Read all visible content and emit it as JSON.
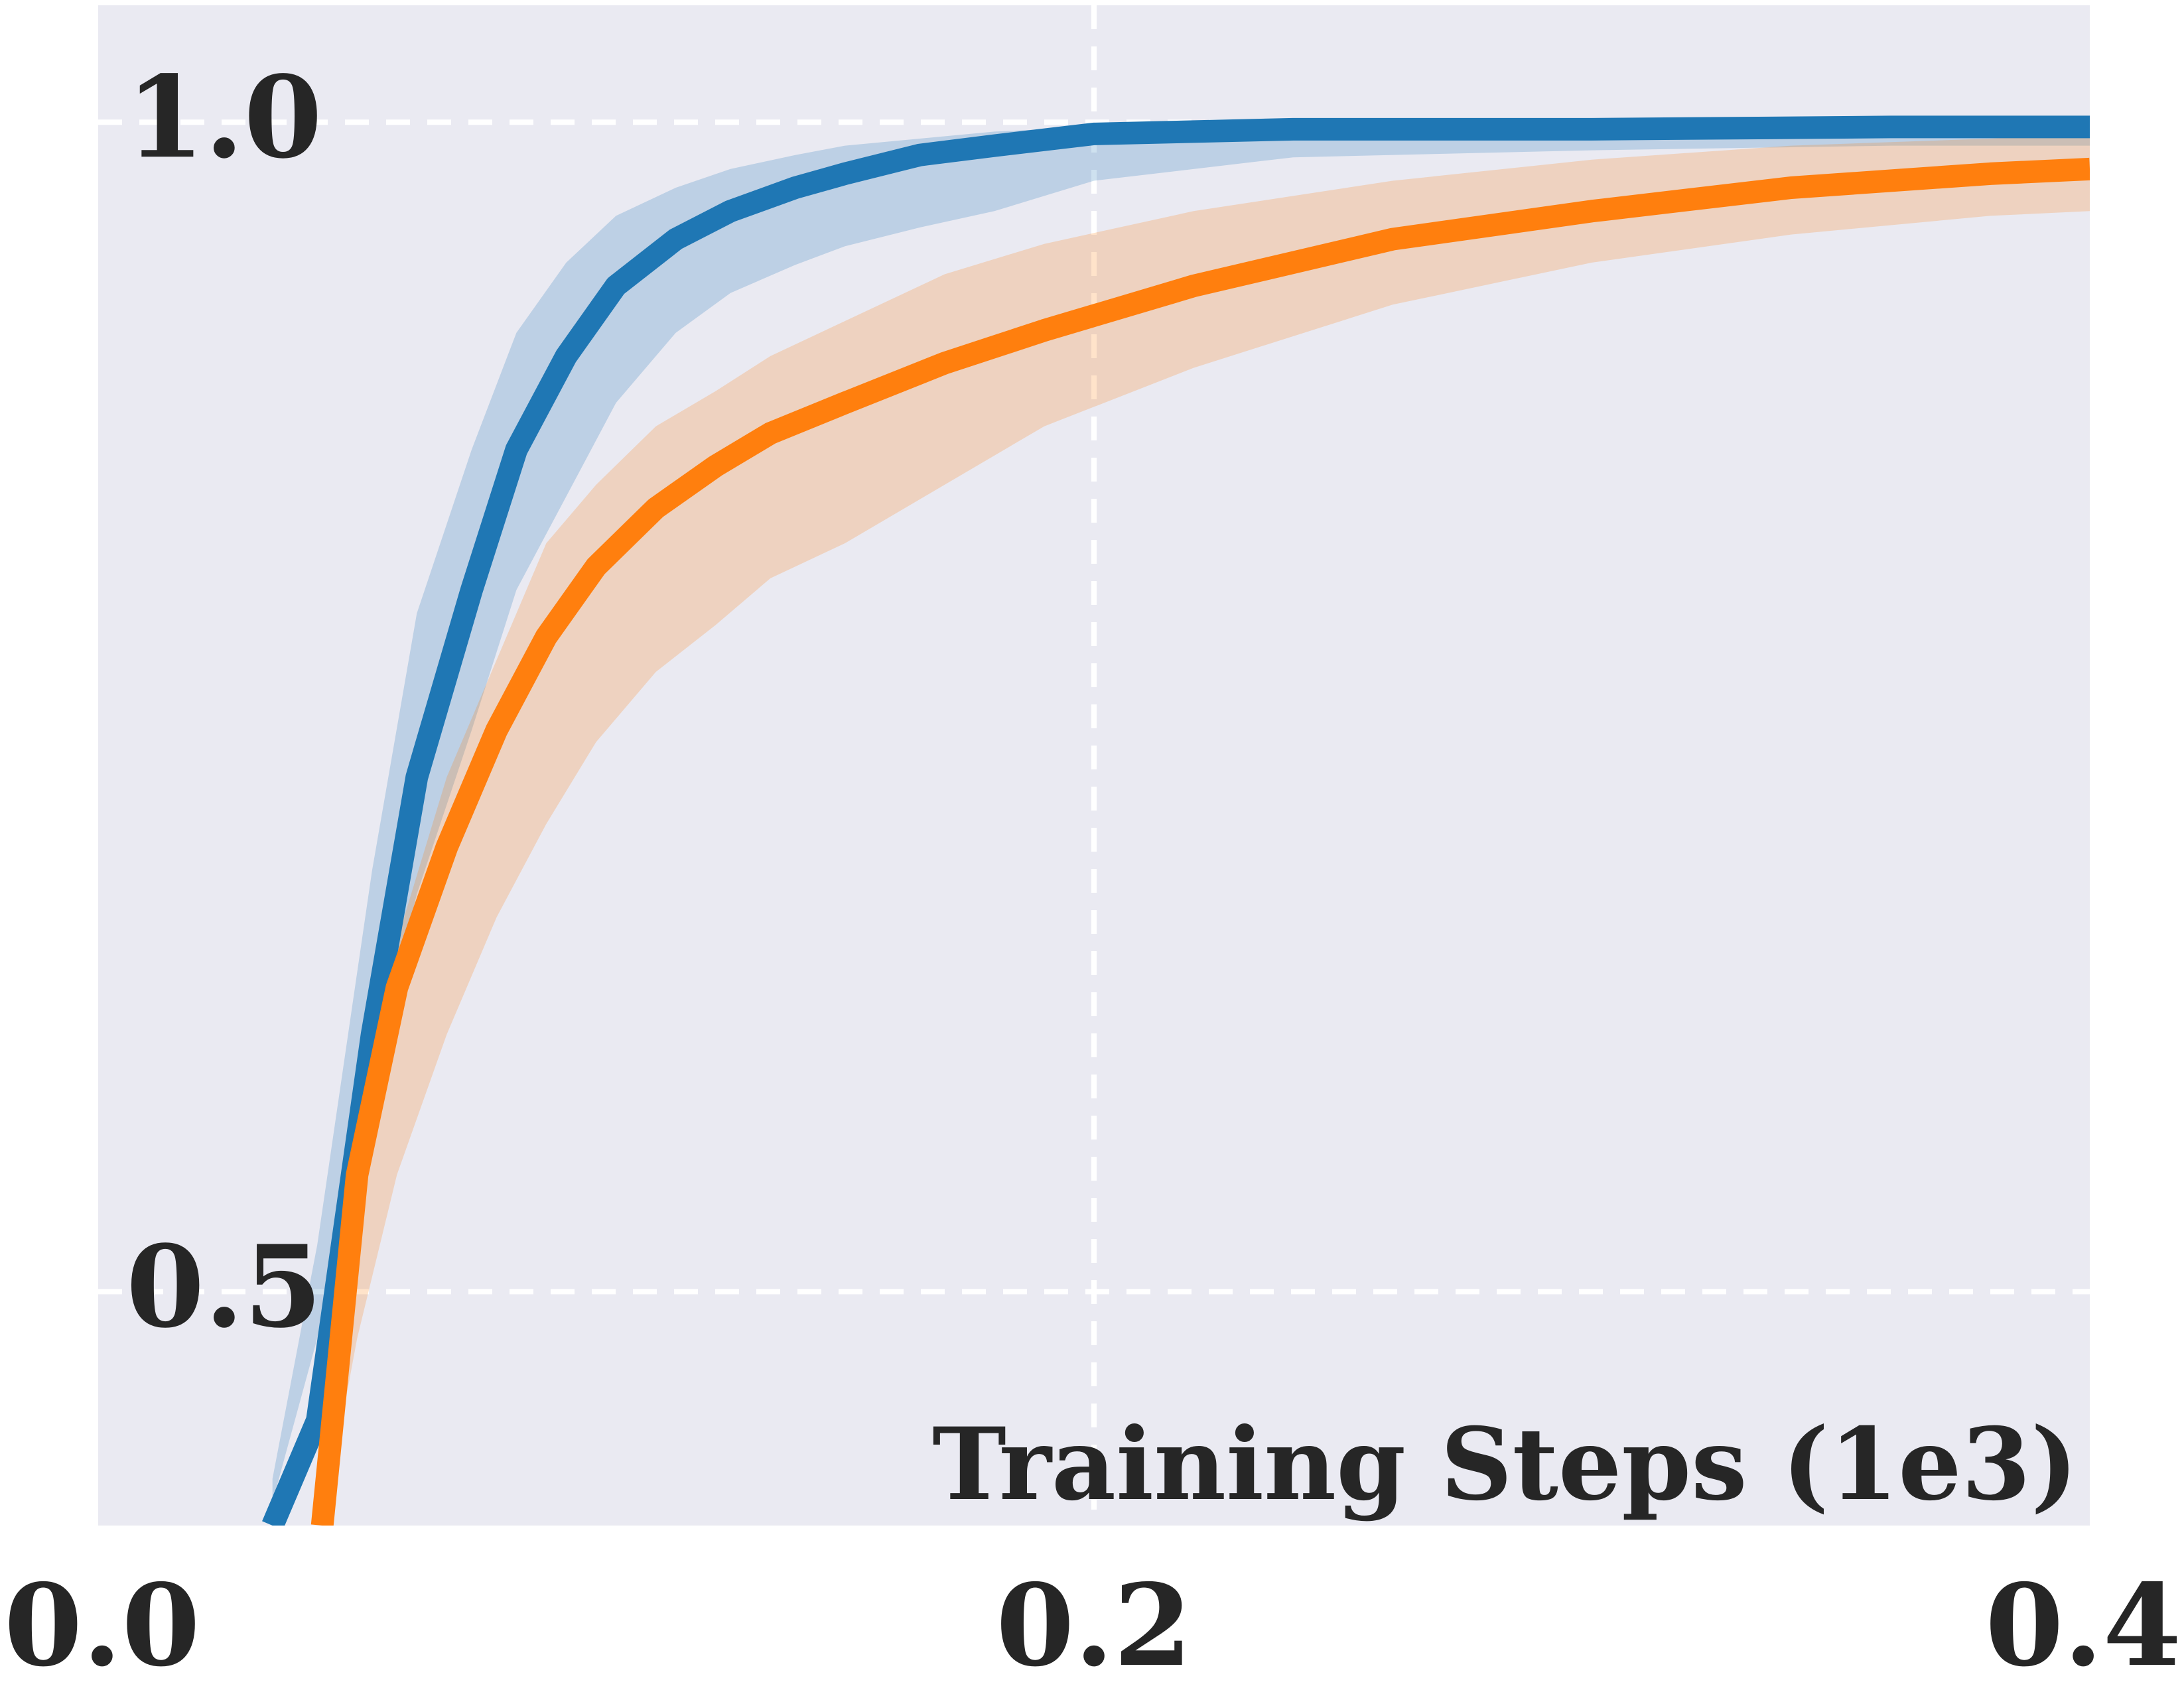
{
  "chart_data": {
    "type": "line",
    "title": "",
    "xlabel": "Training Steps (1e3)",
    "ylabel": "",
    "xlim": [
      0.0,
      0.4
    ],
    "ylim": [
      0.4,
      1.05
    ],
    "xticks": [
      0.0,
      0.2,
      0.4
    ],
    "xtick_labels": [
      "0.0",
      "0.2",
      "0.4"
    ],
    "yticks": [
      0.5,
      1.0
    ],
    "ytick_labels": [
      "0.5",
      "1.0"
    ],
    "grid": true,
    "legend": "none",
    "background": "#eaeaf2",
    "series": [
      {
        "color": "#1f77b4",
        "x": [
          0.035,
          0.044,
          0.055,
          0.064,
          0.075,
          0.084,
          0.094,
          0.104,
          0.116,
          0.127,
          0.14,
          0.15,
          0.165,
          0.18,
          0.2,
          0.24,
          0.3,
          0.36,
          0.4
        ],
        "y": [
          0.4,
          0.445,
          0.61,
          0.72,
          0.8,
          0.86,
          0.9,
          0.93,
          0.95,
          0.962,
          0.972,
          0.978,
          0.986,
          0.99,
          0.995,
          0.997,
          0.997,
          0.998,
          0.998
        ],
        "lower": [
          0.41,
          0.48,
          0.59,
          0.67,
          0.74,
          0.8,
          0.84,
          0.88,
          0.91,
          0.927,
          0.939,
          0.947,
          0.955,
          0.962,
          0.975,
          0.985,
          0.988,
          0.99,
          0.99
        ],
        "upper": [
          0.42,
          0.52,
          0.68,
          0.79,
          0.86,
          0.91,
          0.94,
          0.96,
          0.972,
          0.98,
          0.986,
          0.99,
          0.993,
          0.996,
          0.998,
          1.0,
          1.0,
          1.0,
          1.0
        ]
      },
      {
        "color": "#ff7f0e",
        "x": [
          0.045,
          0.052,
          0.06,
          0.07,
          0.08,
          0.09,
          0.1,
          0.112,
          0.124,
          0.135,
          0.15,
          0.17,
          0.19,
          0.22,
          0.26,
          0.3,
          0.34,
          0.38,
          0.4
        ],
        "y": [
          0.4,
          0.55,
          0.63,
          0.69,
          0.74,
          0.78,
          0.81,
          0.835,
          0.853,
          0.867,
          0.88,
          0.897,
          0.911,
          0.93,
          0.95,
          0.962,
          0.972,
          0.978,
          0.98
        ],
        "lower": [
          0.4,
          0.48,
          0.55,
          0.61,
          0.66,
          0.7,
          0.735,
          0.765,
          0.785,
          0.805,
          0.82,
          0.845,
          0.87,
          0.895,
          0.922,
          0.94,
          0.952,
          0.96,
          0.962
        ],
        "upper": [
          0.4,
          0.56,
          0.65,
          0.72,
          0.77,
          0.82,
          0.845,
          0.87,
          0.885,
          0.9,
          0.915,
          0.935,
          0.948,
          0.962,
          0.975,
          0.984,
          0.99,
          0.993,
          0.995
        ]
      }
    ]
  }
}
